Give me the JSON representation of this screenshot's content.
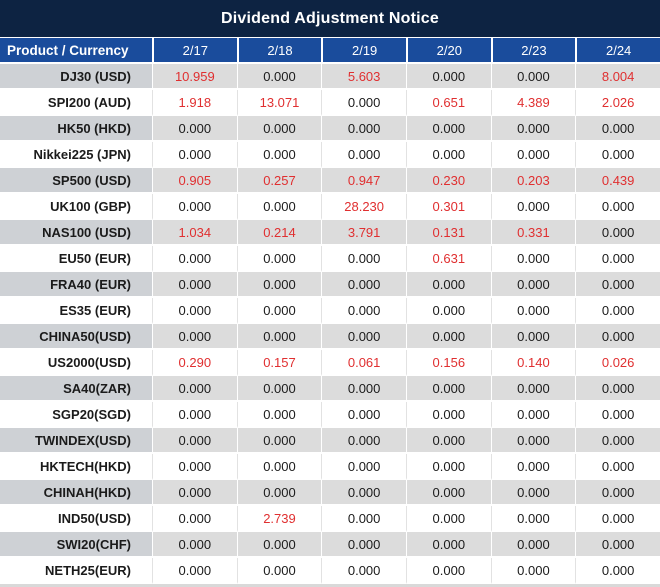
{
  "title": "Dividend Adjustment Notice",
  "colors": {
    "title_bar_bg": "#0d2342",
    "header_bg": "#1a4c9c",
    "header_text": "#ffffff",
    "stripe_product_cell": "#ced1d5",
    "stripe_value_cell": "#dcdcdc",
    "white_row": "#ffffff",
    "positive_value_red": "#e02f30",
    "zero_value_black": "#1b1b1b"
  },
  "chart_data": {
    "type": "table",
    "title": "Dividend Adjustment Notice",
    "columns": [
      "Product / Currency",
      "2/17",
      "2/18",
      "2/19",
      "2/20",
      "2/23",
      "2/24"
    ],
    "rows": [
      {
        "product": "DJ30 (USD)",
        "values": [
          "10.959",
          "0.000",
          "5.603",
          "0.000",
          "0.000",
          "8.004"
        ],
        "red": [
          true,
          false,
          true,
          false,
          false,
          true
        ]
      },
      {
        "product": "SPI200 (AUD)",
        "values": [
          "1.918",
          "13.071",
          "0.000",
          "0.651",
          "4.389",
          "2.026"
        ],
        "red": [
          true,
          true,
          false,
          true,
          true,
          true
        ]
      },
      {
        "product": "HK50 (HKD)",
        "values": [
          "0.000",
          "0.000",
          "0.000",
          "0.000",
          "0.000",
          "0.000"
        ],
        "red": [
          false,
          false,
          false,
          false,
          false,
          false
        ]
      },
      {
        "product": "Nikkei225 (JPN)",
        "values": [
          "0.000",
          "0.000",
          "0.000",
          "0.000",
          "0.000",
          "0.000"
        ],
        "red": [
          false,
          false,
          false,
          false,
          false,
          false
        ]
      },
      {
        "product": "SP500 (USD)",
        "values": [
          "0.905",
          "0.257",
          "0.947",
          "0.230",
          "0.203",
          "0.439"
        ],
        "red": [
          true,
          true,
          true,
          true,
          true,
          true
        ]
      },
      {
        "product": "UK100 (GBP)",
        "values": [
          "0.000",
          "0.000",
          "28.230",
          "0.301",
          "0.000",
          "0.000"
        ],
        "red": [
          false,
          false,
          true,
          true,
          false,
          false
        ]
      },
      {
        "product": "NAS100 (USD)",
        "values": [
          "1.034",
          "0.214",
          "3.791",
          "0.131",
          "0.331",
          "0.000"
        ],
        "red": [
          true,
          true,
          true,
          true,
          true,
          false
        ]
      },
      {
        "product": "EU50 (EUR)",
        "values": [
          "0.000",
          "0.000",
          "0.000",
          "0.631",
          "0.000",
          "0.000"
        ],
        "red": [
          false,
          false,
          false,
          true,
          false,
          false
        ]
      },
      {
        "product": "FRA40 (EUR)",
        "values": [
          "0.000",
          "0.000",
          "0.000",
          "0.000",
          "0.000",
          "0.000"
        ],
        "red": [
          false,
          false,
          false,
          false,
          false,
          false
        ]
      },
      {
        "product": "ES35 (EUR)",
        "values": [
          "0.000",
          "0.000",
          "0.000",
          "0.000",
          "0.000",
          "0.000"
        ],
        "red": [
          false,
          false,
          false,
          false,
          false,
          false
        ]
      },
      {
        "product": "CHINA50(USD)",
        "values": [
          "0.000",
          "0.000",
          "0.000",
          "0.000",
          "0.000",
          "0.000"
        ],
        "red": [
          false,
          false,
          false,
          false,
          false,
          false
        ]
      },
      {
        "product": "US2000(USD)",
        "values": [
          "0.290",
          "0.157",
          "0.061",
          "0.156",
          "0.140",
          "0.026"
        ],
        "red": [
          true,
          true,
          true,
          true,
          true,
          true
        ]
      },
      {
        "product": "SA40(ZAR)",
        "values": [
          "0.000",
          "0.000",
          "0.000",
          "0.000",
          "0.000",
          "0.000"
        ],
        "red": [
          false,
          false,
          false,
          false,
          false,
          false
        ]
      },
      {
        "product": "SGP20(SGD)",
        "values": [
          "0.000",
          "0.000",
          "0.000",
          "0.000",
          "0.000",
          "0.000"
        ],
        "red": [
          false,
          false,
          false,
          false,
          false,
          false
        ]
      },
      {
        "product": "TWINDEX(USD)",
        "values": [
          "0.000",
          "0.000",
          "0.000",
          "0.000",
          "0.000",
          "0.000"
        ],
        "red": [
          false,
          false,
          false,
          false,
          false,
          false
        ]
      },
      {
        "product": "HKTECH(HKD)",
        "values": [
          "0.000",
          "0.000",
          "0.000",
          "0.000",
          "0.000",
          "0.000"
        ],
        "red": [
          false,
          false,
          false,
          false,
          false,
          false
        ]
      },
      {
        "product": "CHINAH(HKD)",
        "values": [
          "0.000",
          "0.000",
          "0.000",
          "0.000",
          "0.000",
          "0.000"
        ],
        "red": [
          false,
          false,
          false,
          false,
          false,
          false
        ]
      },
      {
        "product": "IND50(USD)",
        "values": [
          "0.000",
          "2.739",
          "0.000",
          "0.000",
          "0.000",
          "0.000"
        ],
        "red": [
          false,
          true,
          false,
          false,
          false,
          false
        ]
      },
      {
        "product": "SWI20(CHF)",
        "values": [
          "0.000",
          "0.000",
          "0.000",
          "0.000",
          "0.000",
          "0.000"
        ],
        "red": [
          false,
          false,
          false,
          false,
          false,
          false
        ]
      },
      {
        "product": "NETH25(EUR)",
        "values": [
          "0.000",
          "0.000",
          "0.000",
          "0.000",
          "0.000",
          "0.000"
        ],
        "red": [
          false,
          false,
          false,
          false,
          false,
          false
        ]
      }
    ]
  }
}
